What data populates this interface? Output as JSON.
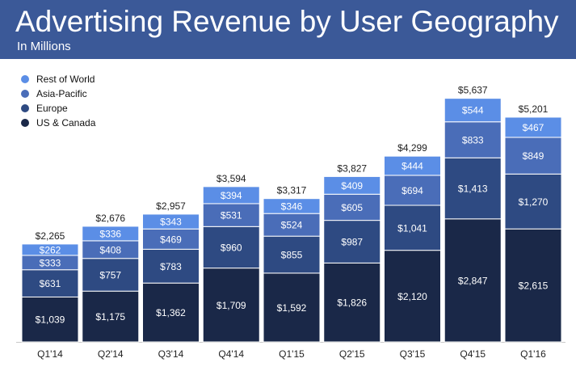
{
  "header": {
    "title": "Advertising Revenue by User Geography",
    "subtitle": "In Millions"
  },
  "colors": {
    "header_bg": "#3b5998",
    "us_canada": "#1a2848",
    "europe": "#2e4a82",
    "asia_pacific": "#4a6db8",
    "rest_of_world": "#5b8ee6"
  },
  "legend": {
    "items": [
      {
        "label": "Rest of World",
        "color": "#5b8ee6"
      },
      {
        "label": "Asia-Pacific",
        "color": "#4a6db8"
      },
      {
        "label": "Europe",
        "color": "#2e4a82"
      },
      {
        "label": "US & Canada",
        "color": "#1a2848"
      }
    ]
  },
  "chart_data": {
    "type": "bar",
    "stacked": true,
    "title": "Advertising Revenue by User Geography",
    "subtitle": "In Millions",
    "legend_position": "top-left",
    "grid": false,
    "categories": [
      "Q1'14",
      "Q2'14",
      "Q3'14",
      "Q4'14",
      "Q1'15",
      "Q2'15",
      "Q3'15",
      "Q4'15",
      "Q1'16"
    ],
    "totals": [
      2265,
      2676,
      2957,
      3594,
      3317,
      3827,
      4299,
      5637,
      5201
    ],
    "total_labels": [
      "$2,265",
      "$2,676",
      "$2,957",
      "$3,594",
      "$3,317",
      "$3,827",
      "$4,299",
      "$5,637",
      "$5,201"
    ],
    "series": [
      {
        "name": "US & Canada",
        "color": "#1a2848",
        "values": [
          1039,
          1175,
          1362,
          1709,
          1592,
          1826,
          2120,
          2847,
          2615
        ],
        "labels": [
          "$1,039",
          "$1,175",
          "$1,362",
          "$1,709",
          "$1,592",
          "$1,826",
          "$2,120",
          "$2,847",
          "$2,615"
        ]
      },
      {
        "name": "Europe",
        "color": "#2e4a82",
        "values": [
          631,
          757,
          783,
          960,
          855,
          987,
          1041,
          1413,
          1270
        ],
        "labels": [
          "$631",
          "$757",
          "$783",
          "$960",
          "$855",
          "$987",
          "$1,041",
          "$1,413",
          "$1,270"
        ]
      },
      {
        "name": "Asia-Pacific",
        "color": "#4a6db8",
        "values": [
          333,
          408,
          469,
          531,
          524,
          605,
          694,
          833,
          849
        ],
        "labels": [
          "$333",
          "$408",
          "$469",
          "$531",
          "$524",
          "$605",
          "$694",
          "$833",
          "$849"
        ]
      },
      {
        "name": "Rest of World",
        "color": "#5b8ee6",
        "values": [
          262,
          336,
          343,
          394,
          346,
          409,
          444,
          544,
          467
        ],
        "labels": [
          "$262",
          "$336",
          "$343",
          "$394",
          "$346",
          "$409",
          "$444",
          "$544",
          "$467"
        ]
      }
    ]
  }
}
